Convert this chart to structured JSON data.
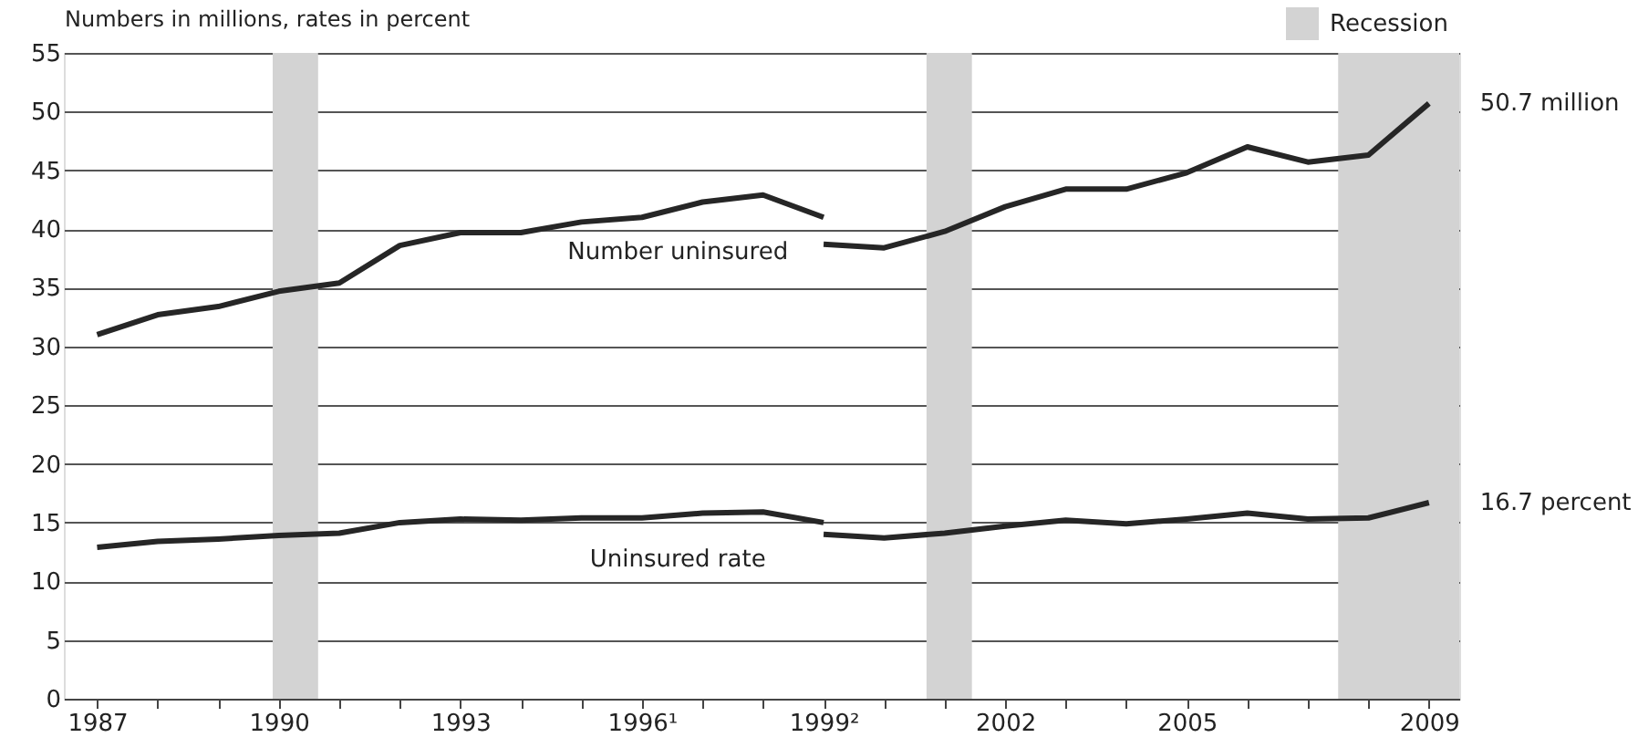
{
  "chart_data": {
    "type": "line",
    "ylabel": "Numbers in millions, rates in percent",
    "xlim": [
      1986.45,
      2009.5
    ],
    "ylim": [
      0,
      55
    ],
    "xticks": [
      1987,
      {
        "value": 1988,
        "label": null
      },
      {
        "value": 1989,
        "label": null
      },
      1990,
      {
        "value": 1991,
        "label": null
      },
      {
        "value": 1992,
        "label": null
      },
      1993,
      {
        "value": 1994,
        "label": null
      },
      {
        "value": 1995,
        "label": null
      },
      {
        "value": 1996,
        "label": "1996¹"
      },
      {
        "value": 1997,
        "label": null
      },
      {
        "value": 1998,
        "label": null
      },
      {
        "value": 1999,
        "label": "1999²"
      },
      {
        "value": 2000,
        "label": null
      },
      {
        "value": 2001,
        "label": null
      },
      2002,
      {
        "value": 2003,
        "label": null
      },
      {
        "value": 2004,
        "label": null
      },
      2005,
      {
        "value": 2006,
        "label": null
      },
      {
        "value": 2007,
        "label": null
      },
      {
        "value": 2008,
        "label": null
      },
      2009
    ],
    "yticks": [
      0,
      5,
      10,
      15,
      20,
      25,
      30,
      35,
      40,
      45,
      50,
      55
    ],
    "grid": "y",
    "legend": "top right",
    "line_style": "solid",
    "series": [
      {
        "color": "#262626",
        "x": [
          1987,
          1988,
          1989,
          1990,
          1991,
          1992,
          1993,
          1994,
          1995,
          1996,
          1997,
          1998,
          1999
        ],
        "values": [
          31.0,
          32.7,
          33.4,
          34.7,
          35.4,
          38.6,
          39.7,
          39.7,
          40.6,
          41.0,
          42.3,
          42.9,
          41.0
        ]
      },
      {
        "color": "#262626",
        "x": [
          1999,
          2000,
          2001,
          2002,
          2003,
          2004,
          2005,
          2006,
          2007,
          2008,
          2009
        ],
        "values": [
          38.7,
          38.4,
          39.8,
          41.9,
          43.4,
          43.4,
          44.8,
          47.0,
          45.7,
          46.3,
          50.7
        ]
      },
      {
        "color": "#262626",
        "x": [
          1987,
          1988,
          1989,
          1990,
          1991,
          1992,
          1993,
          1994,
          1995,
          1996,
          1997,
          1998,
          1999
        ],
        "values": [
          12.9,
          13.4,
          13.6,
          13.9,
          14.1,
          15.0,
          15.3,
          15.2,
          15.4,
          15.4,
          15.8,
          15.9,
          15.0
        ]
      },
      {
        "color": "#262626",
        "x": [
          1999,
          2000,
          2001,
          2002,
          2003,
          2004,
          2005,
          2006,
          2007,
          2008,
          2009
        ],
        "values": [
          14.0,
          13.7,
          14.1,
          14.7,
          15.2,
          14.9,
          15.3,
          15.8,
          15.3,
          15.4,
          16.7
        ]
      }
    ],
    "bands": [
      {
        "axis": "x",
        "from": 1989.9,
        "to": 1990.65,
        "label": "Recession",
        "color": "#d3d3d3"
      },
      {
        "axis": "x",
        "from": 2000.7,
        "to": 2001.45,
        "color": "#d3d3d3"
      },
      {
        "axis": "x",
        "from": 2007.5,
        "to": 2009.5,
        "color": "#d3d3d3"
      }
    ],
    "annotations": [
      "Number uninsured",
      "Uninsured rate",
      {
        "text": "50.7 million",
        "x": 2009,
        "y": 50.7
      },
      {
        "text": "16.7 percent",
        "x": 2009,
        "y": 16.7
      }
    ]
  }
}
